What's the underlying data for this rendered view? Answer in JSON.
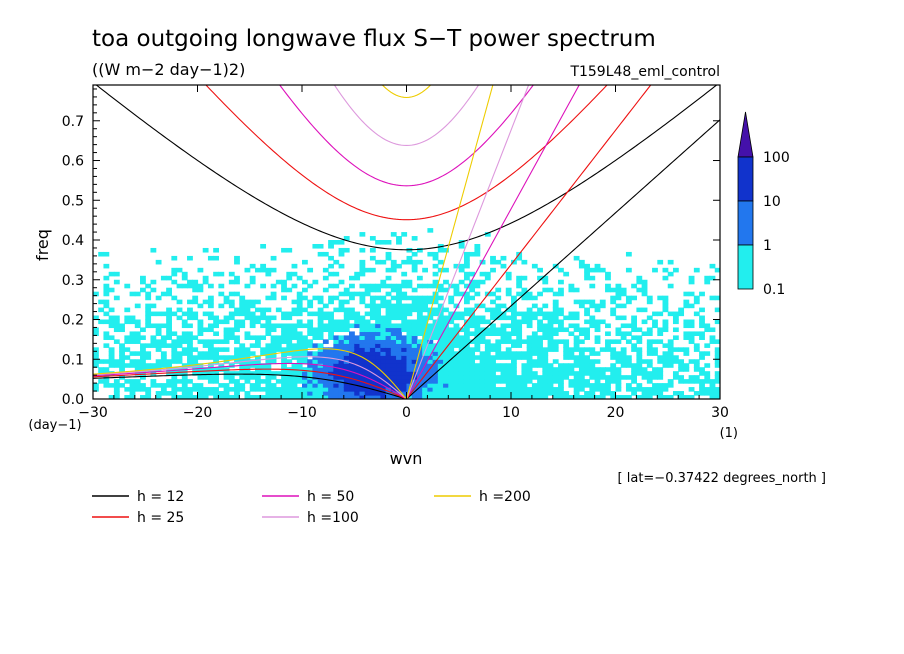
{
  "chart_data": {
    "type": "heatmap",
    "title": "toa outgoing longwave flux S−T power spectrum",
    "subtitle": "((W m−2 day−1)2)",
    "experiment": "T159L48_eml_control",
    "xlabel": "wvn",
    "ylabel": "freq",
    "x_unit": "(1)",
    "y_unit": "(day−1)",
    "xlim": [
      -30,
      30
    ],
    "ylim": [
      0,
      0.79
    ],
    "x_ticks": [
      -30,
      -20,
      -10,
      0,
      10,
      20,
      30
    ],
    "x_tick_labels": [
      "−30",
      "−20",
      "−10",
      "0",
      "10",
      "20",
      "30"
    ],
    "y_ticks": [
      0,
      0.1,
      0.2,
      0.3,
      0.4,
      0.5,
      0.6,
      0.7
    ],
    "y_tick_labels": [
      "0.0",
      "0.1",
      "0.2",
      "0.3",
      "0.4",
      "0.5",
      "0.6",
      "0.7"
    ],
    "colorbar": {
      "levels": [
        "0.1",
        "1",
        "10",
        "100"
      ],
      "colors": [
        "#22eeee",
        "#2277ee",
        "#1133cc",
        "#4411aa"
      ],
      "extend": "max"
    },
    "annotation": "[ lat=−0.37422 degrees_north ]",
    "legend": [
      {
        "label": "h = 12",
        "color": "#000000"
      },
      {
        "label": "h = 25",
        "color": "#ee1111"
      },
      {
        "label": "h = 50",
        "color": "#dd11bb"
      },
      {
        "label": "h =100",
        "color": "#dd99dd"
      },
      {
        "label": "h =200",
        "color": "#eecc00"
      }
    ],
    "equivalent_depths_m": [
      12,
      25,
      50,
      100,
      200
    ],
    "dispersion_curves": [
      "kelvin",
      "rossby",
      "inertio_gravity"
    ]
  }
}
